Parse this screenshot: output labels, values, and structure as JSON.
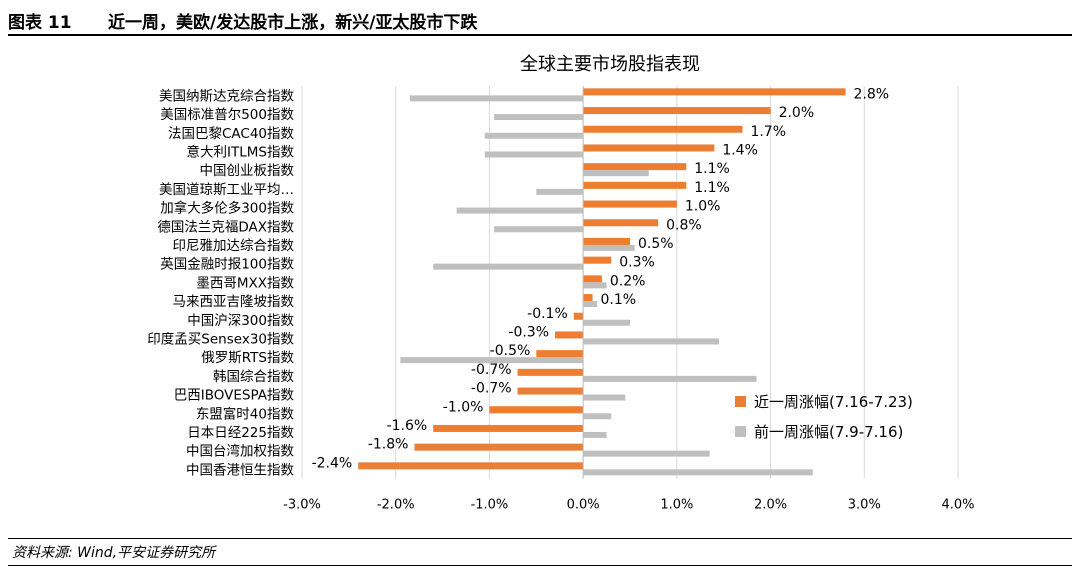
{
  "header": {
    "figure_no": "图表 11",
    "figure_title": "近一周，美欧/发达股市上涨，新兴/亚太股市下跌"
  },
  "footer": {
    "source": "资料来源: Wind,平安证券研究所"
  },
  "colors": {
    "current": "#ED7D31",
    "previous": "#BFBFBF",
    "grid": "#D9D9D9"
  },
  "chart_data": {
    "type": "bar",
    "orientation": "horizontal",
    "title": "全球主要市场股指表现",
    "categories": [
      "美国纳斯达克综合指数",
      "美国标准普尔500指数",
      "法国巴黎CAC40指数",
      "意大利ITLMS指数",
      "中国创业板指数",
      "美国道琼斯工业平均…",
      "加拿大多伦多300指数",
      "德国法兰克福DAX指数",
      "印尼雅加达综合指数",
      "英国金融时报100指数",
      "墨西哥MXX指数",
      "马来西亚吉隆坡指数",
      "中国沪深300指数",
      "印度孟买Sensex30指数",
      "俄罗斯RTS指数",
      "韩国综合指数",
      "巴西IBOVESPA指数",
      "东盟富时40指数",
      "日本日经225指数",
      "中国台湾加权指数",
      "中国香港恒生指数"
    ],
    "series": [
      {
        "name": "近一周涨幅(7.16-7.23)",
        "values": [
          2.8,
          2.0,
          1.7,
          1.4,
          1.1,
          1.1,
          1.0,
          0.8,
          0.5,
          0.3,
          0.2,
          0.1,
          -0.1,
          -0.3,
          -0.5,
          -0.7,
          -0.7,
          -1.0,
          -1.6,
          -1.8,
          -2.4
        ],
        "labels": [
          "2.8%",
          "2.0%",
          "1.7%",
          "1.4%",
          "1.1%",
          "1.1%",
          "1.0%",
          "0.8%",
          "0.5%",
          "0.3%",
          "0.2%",
          "0.1%",
          "-0.1%",
          "-0.3%",
          "-0.5%",
          "-0.7%",
          "-0.7%",
          "-1.0%",
          "-1.6%",
          "-1.8%",
          "-2.4%"
        ]
      },
      {
        "name": "前一周涨幅(7.9-7.16)",
        "values": [
          -1.85,
          -0.95,
          -1.05,
          -1.05,
          0.7,
          -0.5,
          -1.35,
          -0.95,
          0.55,
          -1.6,
          0.25,
          0.15,
          0.5,
          1.45,
          -1.95,
          1.85,
          0.45,
          0.3,
          0.25,
          1.35,
          2.45
        ]
      }
    ],
    "xlim": [
      -3.0,
      4.0
    ],
    "xticks": [
      -3,
      -2,
      -1,
      0,
      1,
      2,
      3,
      4
    ],
    "xtick_labels": [
      "-3.0%",
      "-2.0%",
      "-1.0%",
      "0.0%",
      "1.0%",
      "2.0%",
      "3.0%",
      "4.0%"
    ],
    "grid": true,
    "legend_position": "bottom-right"
  }
}
